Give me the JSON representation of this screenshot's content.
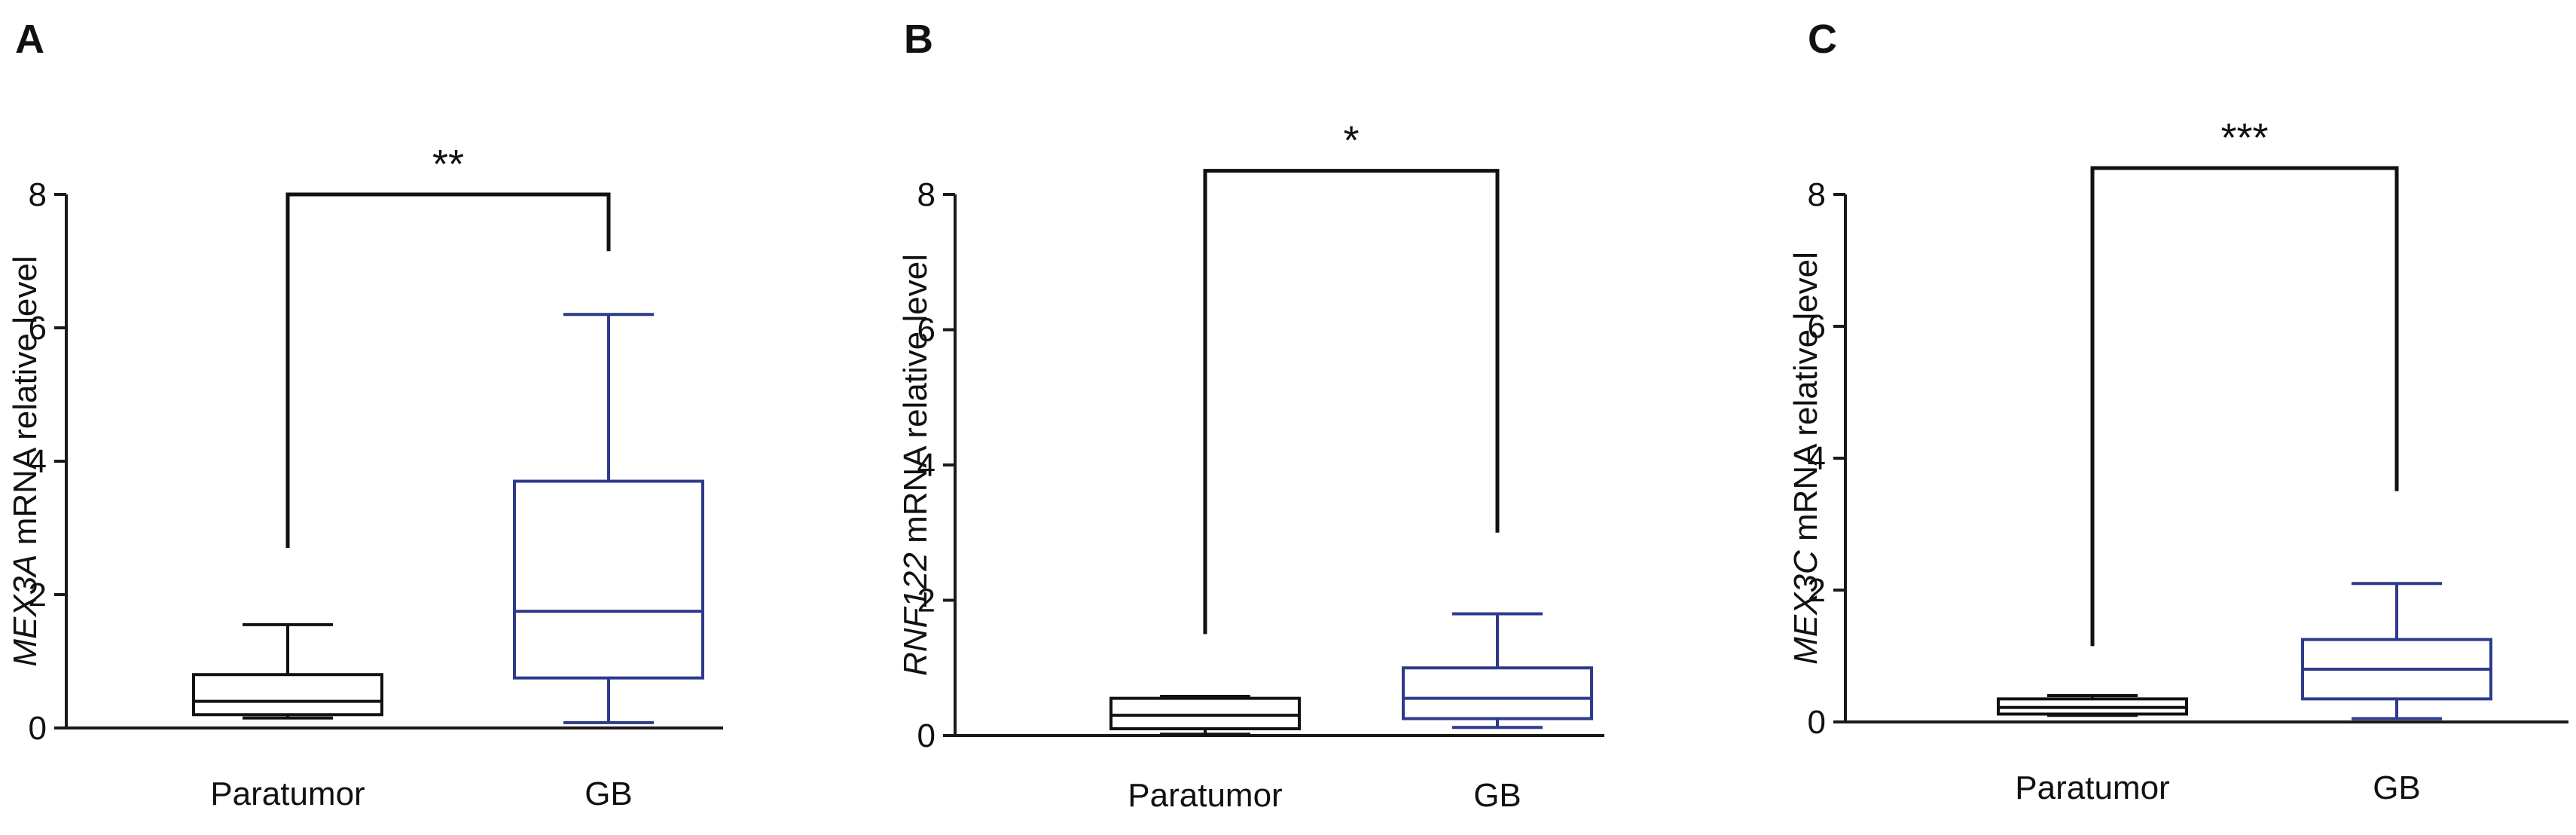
{
  "colors": {
    "paratumor": "#111111",
    "gb": "#2e3a8c",
    "axis": "#1a1a1a"
  },
  "chart_data": [
    {
      "type": "box",
      "panel": "A",
      "ylabel_gene": "MEX3A",
      "ylabel_rest": " mRNA relative level",
      "ylim": [
        0,
        8
      ],
      "yticks": [
        "0",
        "2",
        "4",
        "6",
        "8"
      ],
      "categories": [
        "Paratumor",
        "GB"
      ],
      "boxes": [
        {
          "name": "Paratumor",
          "min": 0.15,
          "q1": 0.2,
          "median": 0.4,
          "q3": 0.8,
          "max": 1.55
        },
        {
          "name": "GB",
          "min": 0.08,
          "q1": 0.75,
          "median": 1.75,
          "q3": 3.7,
          "max": 6.2
        }
      ],
      "significance": "**",
      "bracket_left_y": 2.7,
      "bracket_right_y": 7.15,
      "bracket_top_y": 8.0
    },
    {
      "type": "box",
      "panel": "B",
      "ylabel_gene": "RNF122",
      "ylabel_rest": " mRNA relative level",
      "ylim": [
        0,
        8
      ],
      "yticks": [
        "0",
        "2",
        "4",
        "6",
        "8"
      ],
      "categories": [
        "Paratumor",
        "GB"
      ],
      "boxes": [
        {
          "name": "Paratumor",
          "min": 0.02,
          "q1": 0.1,
          "median": 0.3,
          "q3": 0.55,
          "max": 0.58
        },
        {
          "name": "GB",
          "min": 0.12,
          "q1": 0.25,
          "median": 0.55,
          "q3": 1.0,
          "max": 1.8
        }
      ],
      "significance": "*",
      "bracket_left_y": 1.5,
      "bracket_right_y": 3.0,
      "bracket_top_y": 8.35
    },
    {
      "type": "box",
      "panel": "C",
      "ylabel_gene": "MEX3C",
      "ylabel_rest": " mRNA relative level",
      "ylim": [
        0,
        8
      ],
      "yticks": [
        "0",
        "2",
        "4",
        "6",
        "8"
      ],
      "categories": [
        "Paratumor",
        "GB"
      ],
      "boxes": [
        {
          "name": "Paratumor",
          "min": 0.1,
          "q1": 0.12,
          "median": 0.22,
          "q3": 0.35,
          "max": 0.4
        },
        {
          "name": "GB",
          "min": 0.05,
          "q1": 0.35,
          "median": 0.8,
          "q3": 1.25,
          "max": 2.1
        }
      ],
      "significance": "***",
      "bracket_left_y": 1.15,
      "bracket_right_y": 3.5,
      "bracket_top_y": 8.4
    }
  ]
}
